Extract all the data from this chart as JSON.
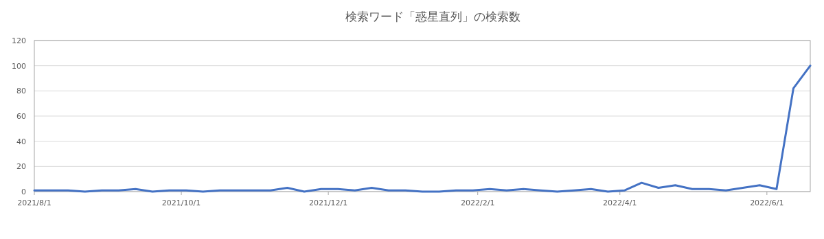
{
  "chart_data": {
    "type": "line",
    "title": "検索ワード「惑星直列」の検索数",
    "x": [
      "2021-08-01",
      "2021-08-08",
      "2021-08-15",
      "2021-08-22",
      "2021-08-29",
      "2021-09-05",
      "2021-09-12",
      "2021-09-19",
      "2021-09-26",
      "2021-10-03",
      "2021-10-10",
      "2021-10-17",
      "2021-10-24",
      "2021-10-31",
      "2021-11-07",
      "2021-11-14",
      "2021-11-21",
      "2021-11-28",
      "2021-12-05",
      "2021-12-12",
      "2021-12-19",
      "2021-12-26",
      "2022-01-02",
      "2022-01-09",
      "2022-01-16",
      "2022-01-23",
      "2022-01-30",
      "2022-02-06",
      "2022-02-13",
      "2022-02-20",
      "2022-02-27",
      "2022-03-06",
      "2022-03-13",
      "2022-03-20",
      "2022-03-27",
      "2022-04-03",
      "2022-04-10",
      "2022-04-17",
      "2022-04-24",
      "2022-05-01",
      "2022-05-08",
      "2022-05-15",
      "2022-05-22",
      "2022-05-29",
      "2022-06-05",
      "2022-06-12",
      "2022-06-19"
    ],
    "values": [
      1,
      1,
      1,
      0,
      1,
      1,
      2,
      0,
      1,
      1,
      0,
      1,
      1,
      1,
      1,
      3,
      0,
      2,
      2,
      1,
      3,
      1,
      1,
      0,
      0,
      1,
      1,
      2,
      1,
      2,
      1,
      0,
      1,
      2,
      0,
      1,
      7,
      3,
      5,
      2,
      2,
      1,
      3,
      5,
      2,
      82,
      100
    ],
    "color": "#4472c4",
    "xlim": [
      "2021-08-01",
      "2022-06-19"
    ],
    "xticks": [
      {
        "value": "2021-08-01",
        "label": "2021/8/1"
      },
      {
        "value": "2021-10-01",
        "label": "2021/10/1"
      },
      {
        "value": "2021-12-01",
        "label": "2021/12/1"
      },
      {
        "value": "2022-02-01",
        "label": "2022/2/1"
      },
      {
        "value": "2022-04-01",
        "label": "2022/4/1"
      },
      {
        "value": "2022-06-01",
        "label": "2022/6/1"
      }
    ],
    "ylim": [
      0,
      120
    ],
    "yticks": [
      0,
      20,
      40,
      60,
      80,
      100,
      120
    ],
    "grid": "y",
    "line_style": "solid",
    "marker": "none"
  }
}
